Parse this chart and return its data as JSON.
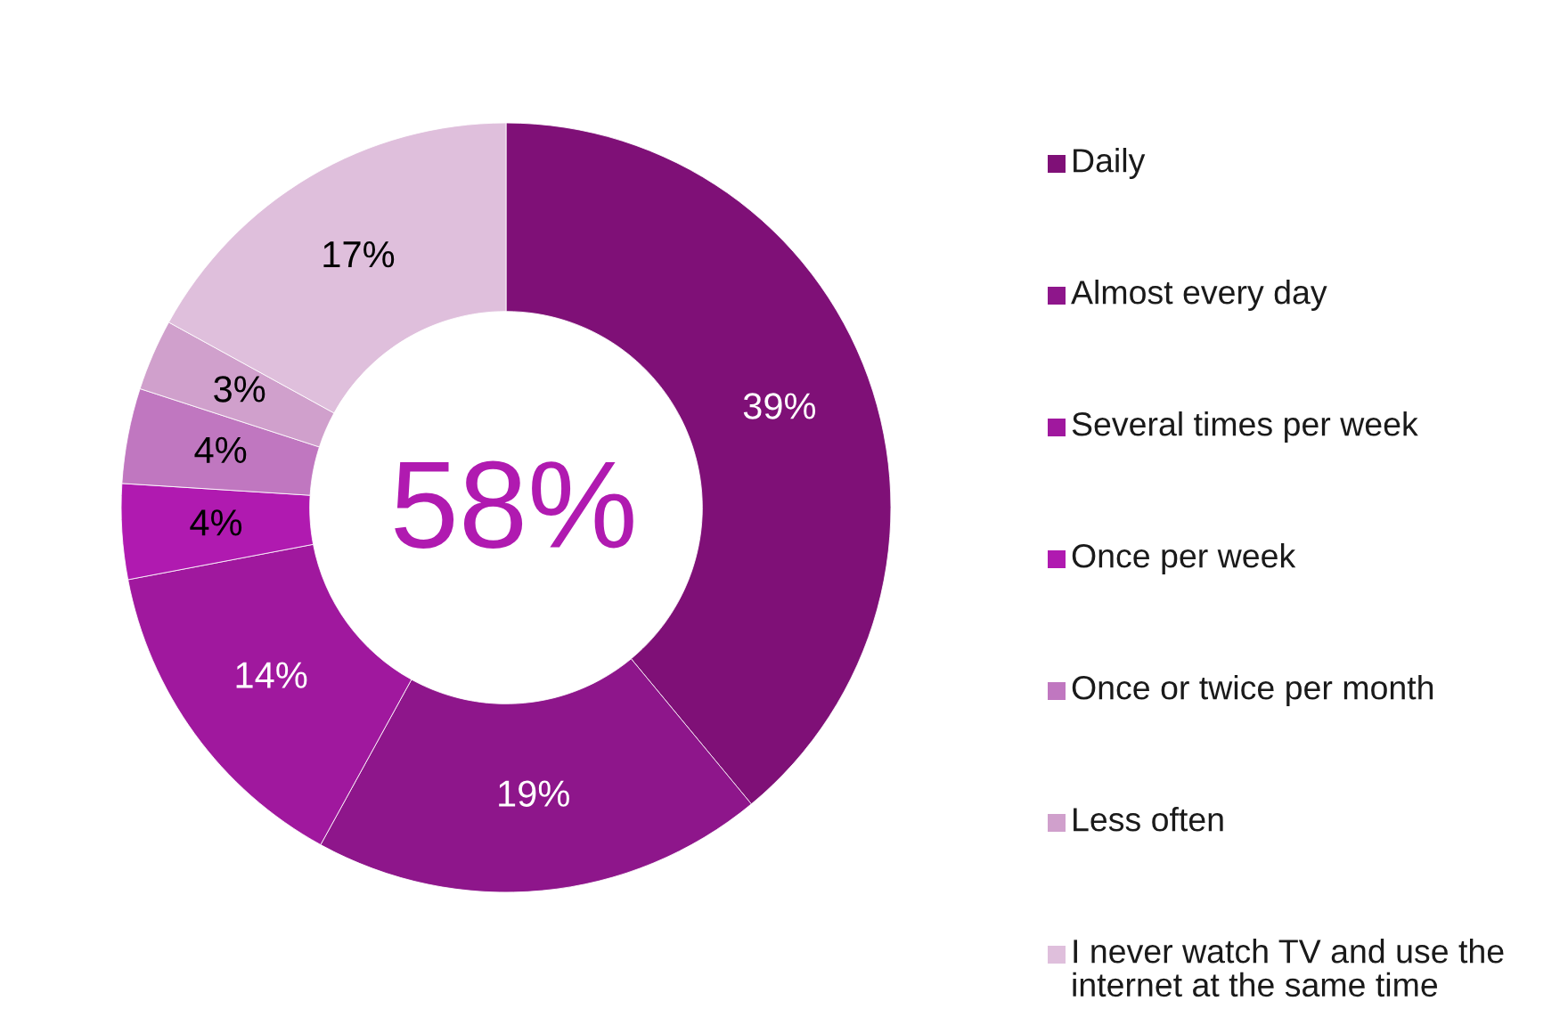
{
  "chart_data": {
    "type": "donut",
    "categories": [
      "Daily",
      "Almost every day",
      "Several times per week",
      "Once per week",
      "Once or twice per month",
      "Less often",
      "I never watch TV and use the internet at the same time"
    ],
    "values": [
      39,
      19,
      14,
      4,
      4,
      3,
      17
    ],
    "colors": [
      "#7f1077",
      "#8e168b",
      "#a0189e",
      "#b01ab0",
      "#c077c0",
      "#d0a0cc",
      "#dfbfdc"
    ],
    "value_labels": [
      "39%",
      "19%",
      "14%",
      "4%",
      "4%",
      "3%",
      "17%"
    ],
    "annotations": [
      "58%"
    ],
    "legend": "right"
  }
}
